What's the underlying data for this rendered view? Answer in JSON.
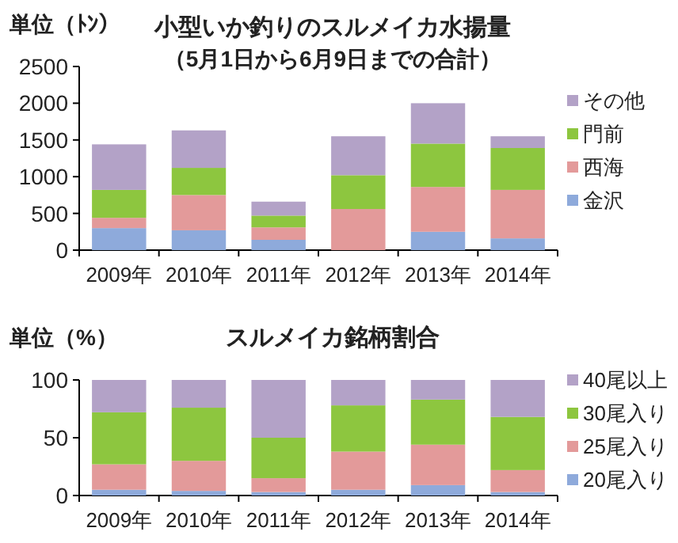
{
  "chart_data": [
    {
      "type": "bar",
      "stacked": true,
      "title": "小型いか釣りのスルメイカ水揚量",
      "subtitle": "（5月1日から6月9日までの合計）",
      "ylabel": "単位（ﾄﾝ）",
      "categories": [
        "2009年",
        "2010年",
        "2011年",
        "2012年",
        "2013年",
        "2014年"
      ],
      "series": [
        {
          "name": "金沢",
          "color": "#8eaadb",
          "values": [
            300,
            270,
            140,
            0,
            250,
            160
          ]
        },
        {
          "name": "西海",
          "color": "#e39a9a",
          "values": [
            140,
            480,
            170,
            560,
            610,
            660
          ]
        },
        {
          "name": "門前",
          "color": "#8dc63f",
          "values": [
            380,
            370,
            160,
            460,
            590,
            570
          ]
        },
        {
          "name": "その他",
          "color": "#b3a2c7",
          "values": [
            620,
            510,
            190,
            530,
            550,
            160
          ]
        }
      ],
      "ylim": [
        0,
        2500
      ],
      "yticks": [
        0,
        500,
        1000,
        1500,
        2000,
        2500
      ],
      "legend": "right",
      "grid": false
    },
    {
      "type": "bar",
      "stacked": true,
      "title": "スルメイカ銘柄割合",
      "ylabel": "単位（%）",
      "categories": [
        "2009年",
        "2010年",
        "2011年",
        "2012年",
        "2013年",
        "2014年"
      ],
      "series": [
        {
          "name": "20尾入り",
          "color": "#8eaadb",
          "values": [
            5,
            4,
            3,
            5,
            9,
            3
          ]
        },
        {
          "name": "25尾入り",
          "color": "#e39a9a",
          "values": [
            22,
            26,
            12,
            33,
            35,
            19
          ]
        },
        {
          "name": "30尾入り",
          "color": "#8dc63f",
          "values": [
            45,
            46,
            35,
            40,
            39,
            46
          ]
        },
        {
          "name": "40尾以上",
          "color": "#b3a2c7",
          "values": [
            28,
            24,
            50,
            22,
            17,
            32
          ]
        }
      ],
      "ylim": [
        0,
        100
      ],
      "yticks": [
        0,
        50,
        100
      ],
      "legend": "right",
      "grid": false
    }
  ]
}
